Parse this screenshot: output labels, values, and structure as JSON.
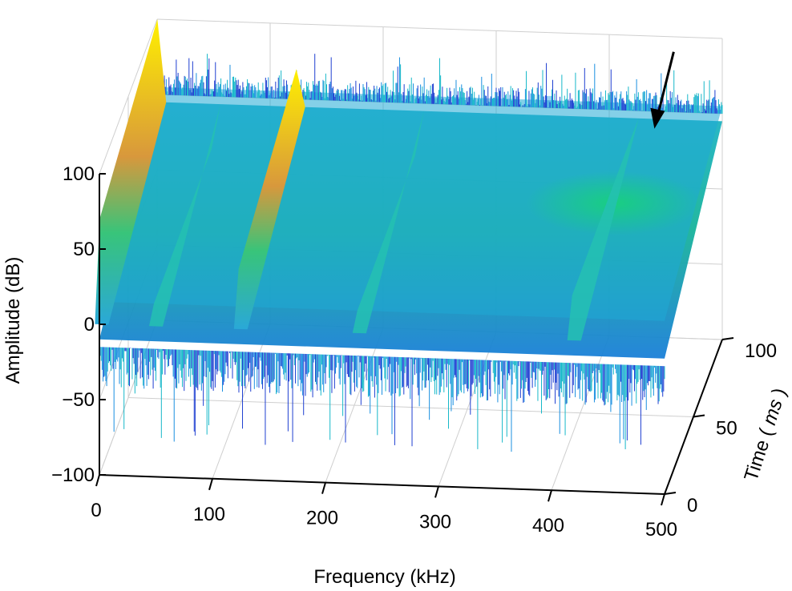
{
  "chart_data": {
    "type": "surface3d",
    "xlabel": "Frequency (kHz)",
    "ylabel": "Time",
    "ylabel_unit": "ms",
    "zlabel": "Amplitude (dB)",
    "xlim": [
      0,
      500
    ],
    "ylim": [
      0,
      100
    ],
    "zlim": [
      -100,
      100
    ],
    "x_ticks": [
      "0",
      "100",
      "200",
      "300",
      "400",
      "500"
    ],
    "y_ticks": [
      "0",
      "50",
      "100"
    ],
    "z_ticks": [
      "−100",
      "−50",
      "0",
      "50",
      "100"
    ],
    "x_tick_values": [
      0,
      100,
      200,
      300,
      400,
      500
    ],
    "y_tick_values": [
      0,
      50,
      100
    ],
    "z_tick_values": [
      -100,
      -50,
      0,
      50,
      100
    ],
    "grid": true,
    "colormap": [
      "#1f3fd1",
      "#1a8fe0",
      "#17b8c9",
      "#13c79a",
      "#34c95a",
      "#9fcf2a",
      "#e0a93a",
      "#ffe21a",
      "#fff200"
    ],
    "noise_floor_db": [
      15,
      45
    ],
    "series": [
      {
        "x": 2,
        "peak_db": 100
      },
      {
        "x": 125,
        "peak_db": 70
      },
      {
        "x": 50,
        "peak_db": 15
      },
      {
        "x": 230,
        "peak_db": 15
      },
      {
        "x": 420,
        "peak_db": 30
      }
    ],
    "annotations": [
      {
        "type": "arrow",
        "x": 440,
        "y": 100,
        "z": 30
      }
    ]
  }
}
